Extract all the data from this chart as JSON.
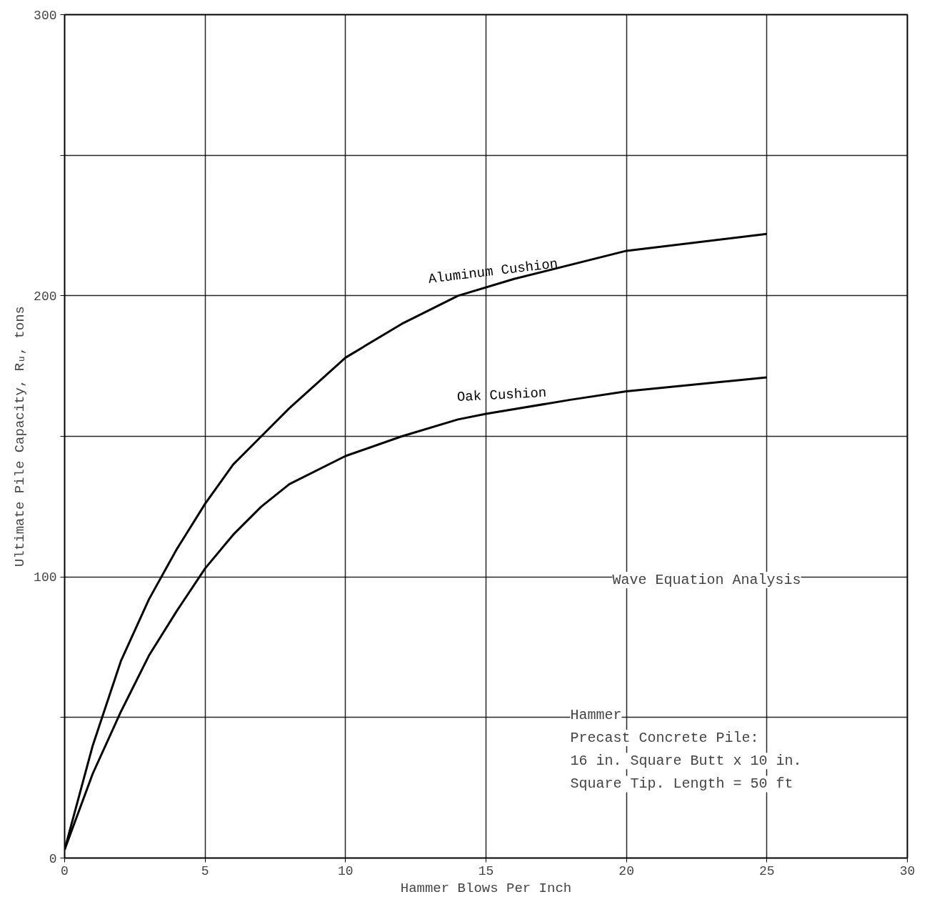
{
  "chart_data": {
    "type": "line",
    "xlabel": "Hammer Blows Per Inch",
    "ylabel": "Ultimate Pile Capacity, Rᵤ, tons",
    "xlim": [
      0,
      30
    ],
    "ylim": [
      0,
      300
    ],
    "xticks": [
      0,
      5,
      10,
      15,
      20,
      25,
      30
    ],
    "yticks": [
      0,
      {
        "value": 50,
        "label": null
      },
      100,
      {
        "value": 150,
        "label": null
      },
      200,
      {
        "value": 250,
        "label": null
      },
      300
    ],
    "grid": true,
    "marker": "none",
    "line_style": "solid",
    "series": [
      {
        "name": "Aluminum Cushion",
        "color": "#000000",
        "x": [
          0,
          1,
          2,
          3,
          4,
          5,
          6,
          7,
          8,
          10,
          12,
          14,
          16,
          20,
          25
        ],
        "values": [
          3,
          40,
          70,
          92,
          110,
          126,
          140,
          150,
          160,
          178,
          190,
          200,
          206,
          216,
          222
        ]
      },
      {
        "name": "Oak Cushion",
        "color": "#000000",
        "x": [
          0,
          1,
          2,
          3,
          4,
          5,
          6,
          7,
          8,
          10,
          12,
          14,
          15,
          18,
          20,
          25
        ],
        "values": [
          3,
          30,
          52,
          72,
          88,
          103,
          115,
          125,
          133,
          143,
          150,
          156,
          158,
          163,
          166,
          171
        ]
      }
    ],
    "annotations": [
      "Wave Equation Analysis",
      "Hammer",
      "Precast Concrete Pile:",
      "  16 in. Square Butt x 10 in.",
      "  Square Tip.  Length = 50 ft"
    ]
  }
}
